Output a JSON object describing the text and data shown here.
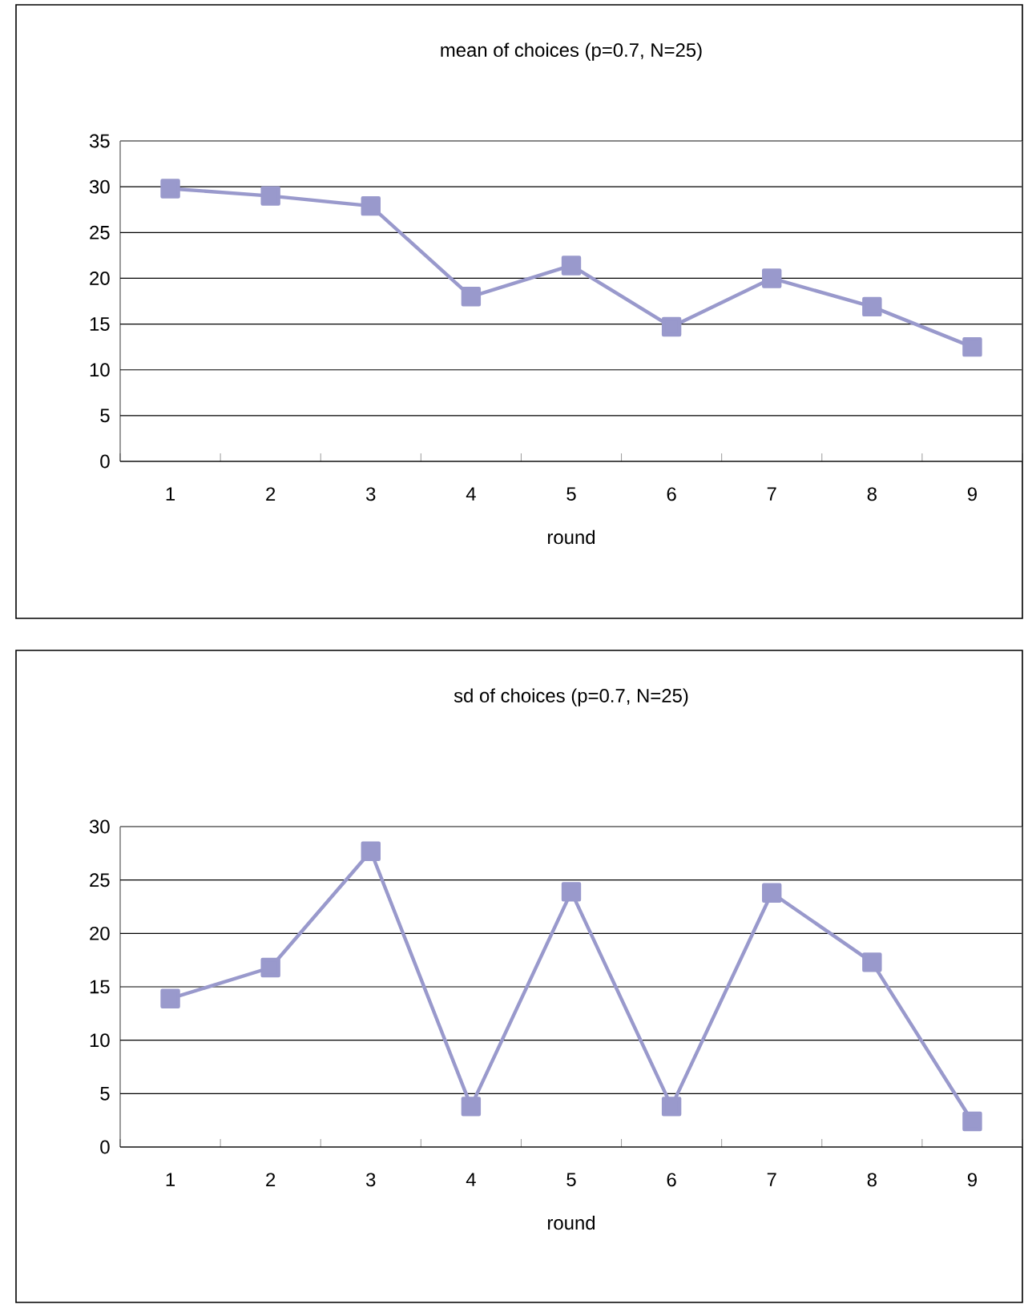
{
  "chart_data": [
    {
      "type": "line",
      "title": "mean of choices (p=0.7, N=25)",
      "xlabel": "round",
      "categories": [
        "1",
        "2",
        "3",
        "4",
        "5",
        "6",
        "7",
        "8",
        "9"
      ],
      "series": [
        {
          "color": "#9999cc",
          "values": [
            29.8,
            29,
            27.9,
            18,
            21.4,
            14.7,
            20,
            16.9,
            12.5
          ]
        }
      ],
      "ylim": [
        0,
        35
      ],
      "yticks": [
        0,
        5,
        10,
        15,
        20,
        25,
        30,
        35
      ],
      "grid": "y",
      "marker": "square",
      "line_style": "solid"
    },
    {
      "type": "line",
      "title": "sd of choices (p=0.7, N=25)",
      "xlabel": "round",
      "categories": [
        "1",
        "2",
        "3",
        "4",
        "5",
        "6",
        "7",
        "8",
        "9"
      ],
      "series": [
        {
          "color": "#9999cc",
          "values": [
            13.9,
            16.8,
            27.7,
            3.8,
            23.9,
            3.8,
            23.8,
            17.3,
            2.4
          ]
        }
      ],
      "ylim": [
        0,
        30
      ],
      "yticks": [
        0,
        5,
        10,
        15,
        20,
        25,
        30
      ],
      "grid": "y",
      "marker": "square",
      "line_style": "solid"
    }
  ]
}
